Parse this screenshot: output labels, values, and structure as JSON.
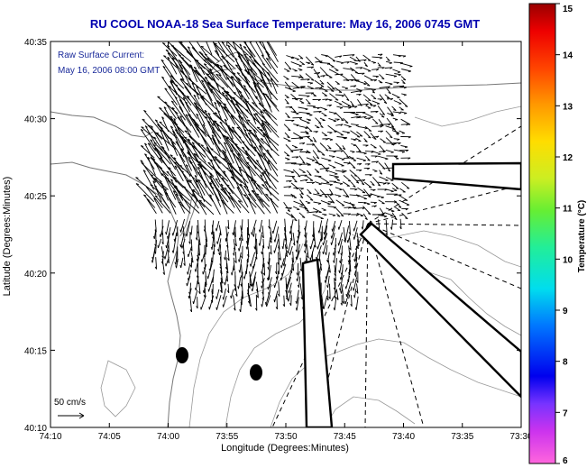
{
  "title": "RU COOL   NOAA-18  Sea Surface Temperature:  May 16, 2006 0745 GMT",
  "inset": {
    "line1": "Raw Surface Current:",
    "line2": "May 16, 2006 08:00 GMT"
  },
  "x_axis": {
    "label": "Longitude (Degrees:Minutes)",
    "ticks": [
      "74:10",
      "74:05",
      "74:00",
      "73:55",
      "73:50",
      "73:45",
      "73:40",
      "73:35",
      "73:30"
    ]
  },
  "y_axis": {
    "label": "Latitude (Degrees:Minutes)",
    "ticks": [
      "40:10",
      "40:15",
      "40:20",
      "40:25",
      "40:30",
      "40:35"
    ]
  },
  "colorbar": {
    "label": "Temperature (°C)",
    "min": 6,
    "max": 15,
    "ticks": [
      "6",
      "7",
      "8",
      "9",
      "10",
      "11",
      "12",
      "13",
      "14",
      "15"
    ]
  },
  "scale_arrow": {
    "label": "50 cm/s"
  },
  "colors": {
    "title": "#0000b0",
    "inset_text": "#1a2a9a",
    "coastline": "#777777",
    "vectors": "#000000"
  }
}
